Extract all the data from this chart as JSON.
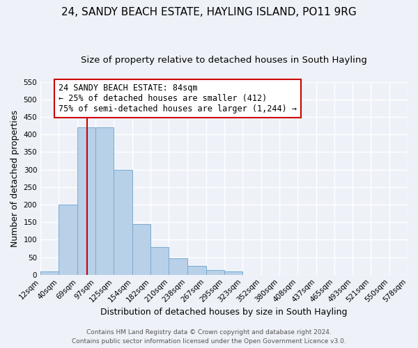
{
  "title": "24, SANDY BEACH ESTATE, HAYLING ISLAND, PO11 9RG",
  "subtitle": "Size of property relative to detached houses in South Hayling",
  "xlabel": "Distribution of detached houses by size in South Hayling",
  "ylabel": "Number of detached properties",
  "bin_labels": [
    "12sqm",
    "40sqm",
    "69sqm",
    "97sqm",
    "125sqm",
    "154sqm",
    "182sqm",
    "210sqm",
    "238sqm",
    "267sqm",
    "295sqm",
    "323sqm",
    "352sqm",
    "380sqm",
    "408sqm",
    "437sqm",
    "465sqm",
    "493sqm",
    "521sqm",
    "550sqm",
    "578sqm"
  ],
  "bin_edges": [
    12,
    40,
    69,
    97,
    125,
    154,
    182,
    210,
    238,
    267,
    295,
    323,
    352,
    380,
    408,
    437,
    465,
    493,
    521,
    550,
    578
  ],
  "bar_heights": [
    10,
    200,
    420,
    420,
    300,
    145,
    78,
    48,
    25,
    13,
    10,
    0,
    0,
    0,
    0,
    0,
    0,
    0,
    0,
    0,
    5
  ],
  "bar_color": "#b8d0e8",
  "bar_edge_color": "#7aaad0",
  "property_line_x": 84,
  "property_line_color": "#cc0000",
  "annotation_line1": "24 SANDY BEACH ESTATE: 84sqm",
  "annotation_line2": "← 25% of detached houses are smaller (412)",
  "annotation_line3": "75% of semi-detached houses are larger (1,244) →",
  "annotation_box_color": "#ffffff",
  "annotation_box_edge_color": "#cc0000",
  "ylim": [
    0,
    550
  ],
  "yticks": [
    0,
    50,
    100,
    150,
    200,
    250,
    300,
    350,
    400,
    450,
    500,
    550
  ],
  "footer_line1": "Contains HM Land Registry data © Crown copyright and database right 2024.",
  "footer_line2": "Contains public sector information licensed under the Open Government Licence v3.0.",
  "bg_color": "#eef2f8",
  "plot_bg_color": "#eef2f8",
  "grid_color": "#ffffff",
  "title_fontsize": 11,
  "subtitle_fontsize": 9.5,
  "axis_label_fontsize": 9,
  "tick_fontsize": 7.5,
  "annotation_fontsize": 8.5,
  "footer_fontsize": 6.5
}
